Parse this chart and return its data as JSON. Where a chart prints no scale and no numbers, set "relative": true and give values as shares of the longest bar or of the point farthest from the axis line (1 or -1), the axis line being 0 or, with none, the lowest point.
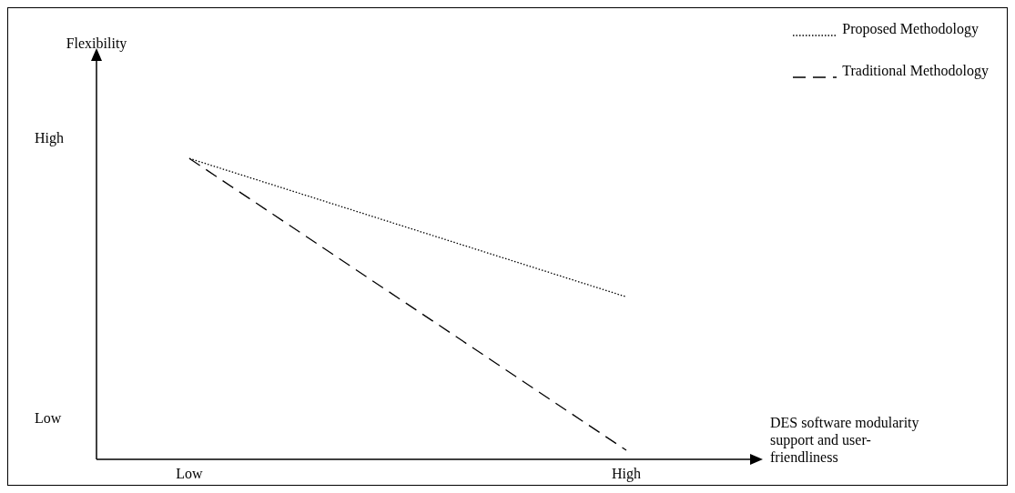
{
  "chart_data": {
    "type": "line",
    "categories": [
      "Low",
      "High"
    ],
    "series": [
      {
        "name": "Proposed Methodology",
        "color": "#000000",
        "line_style": "dotted",
        "values": [
          1,
          0.54
        ]
      },
      {
        "name": "Traditional Methodology",
        "color": "#000000",
        "line_style": "dashed",
        "values": [
          1,
          0.03
        ]
      }
    ],
    "relative": true,
    "annotations": [
      "Flexibility",
      "High",
      "Low"
    ],
    "xlabel": "DES software modularity support and user-friendliness",
    "legend": "top right",
    "grid": false,
    "marker": "none"
  }
}
